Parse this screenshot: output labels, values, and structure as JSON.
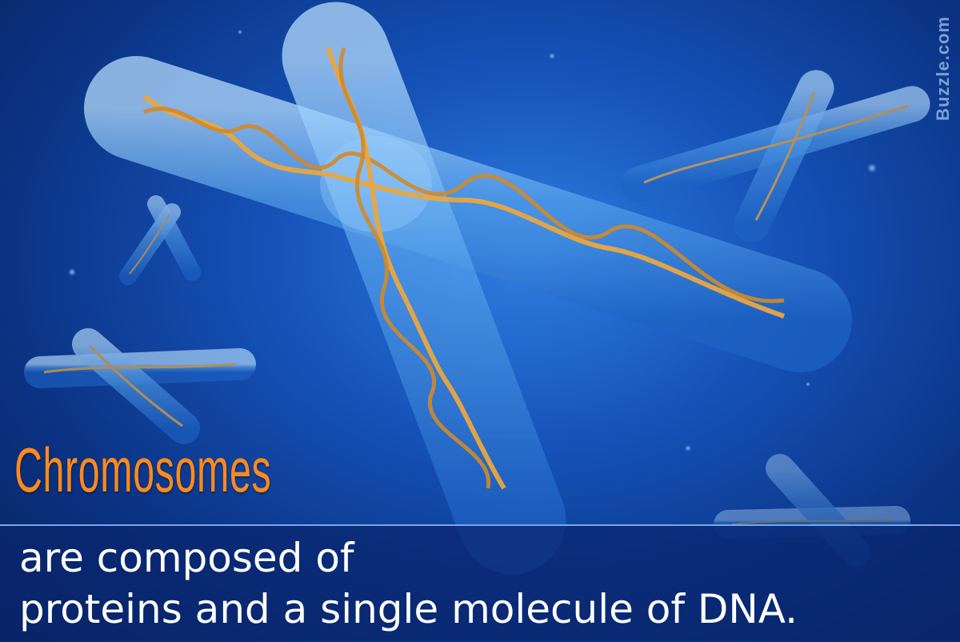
{
  "watermark": "Buzzle.com",
  "headline": "Chromosomes",
  "caption": {
    "line1": "are composed of",
    "line2": "proteins and a single molecule of DNA."
  },
  "colors": {
    "background": "#1552b8",
    "chromosome": "#6fb3f2",
    "dna": "#e9a640",
    "headline": "#ff8a1a",
    "caption": "#ffffff"
  }
}
